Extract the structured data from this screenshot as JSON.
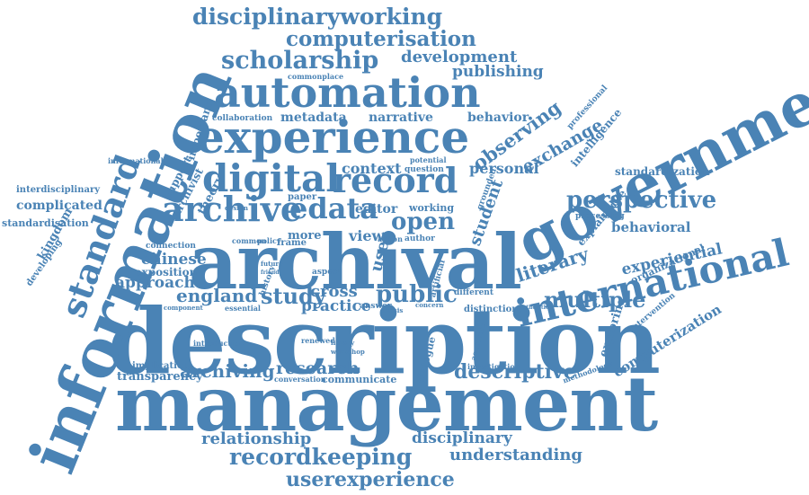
{
  "accent_color": "#4a83b5",
  "words": [
    "description",
    "management",
    "archival",
    "information",
    "government",
    "experience",
    "automation",
    "international",
    "digital",
    "record",
    "archive",
    "standard",
    "edata",
    "scholarship",
    "disciplinaryworking",
    "computerisation",
    "perspective",
    "recordkeeping",
    "userexperience",
    "observing",
    "multiple",
    "public",
    "open",
    "literary",
    "exchange",
    "descriptive",
    "relationship",
    "understanding",
    "disciplinary",
    "archiving",
    "research",
    "study",
    "england",
    "chinese",
    "development",
    "publishing",
    "metadata",
    "narrative",
    "behavior",
    "experiential",
    "behavioral",
    "standardization",
    "intelligence",
    "computerization",
    "user",
    "context",
    "editor",
    "view",
    "cross",
    "practice",
    "student",
    "personal",
    "approach",
    "exposition",
    "kingdom",
    "complicated",
    "standardisation",
    "interdisciplinary",
    "developing",
    "transparency",
    "implication",
    "communicate",
    "dialogue",
    "processing",
    "explainable",
    "organizational",
    "exploring",
    "intervention",
    "methodology",
    "professional",
    "support",
    "important",
    "archivist",
    "theory",
    "commonplace",
    "collaboration",
    "potential",
    "question",
    "informational",
    "connection",
    "common",
    "policy",
    "more",
    "aspect",
    "history",
    "action",
    "author",
    "working",
    "paper",
    "frame",
    "grounded",
    "distinction",
    "answer",
    "introduction",
    "investigation",
    "conversation",
    "component",
    "essential",
    "renewed",
    "library",
    "workshop",
    "artificial",
    "different",
    "academic",
    "authorities",
    "concern",
    "thesis",
    "future",
    "friend",
    "design"
  ]
}
